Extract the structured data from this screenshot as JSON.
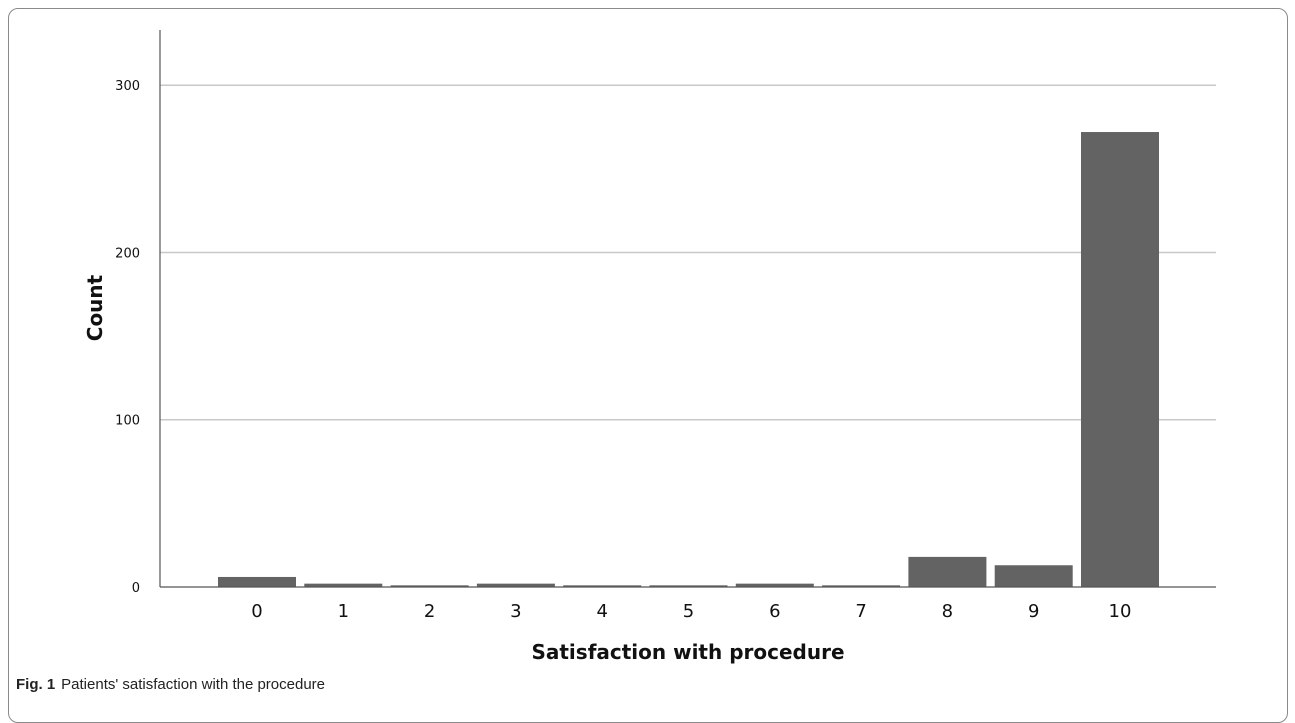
{
  "caption": {
    "label": "Fig. 1",
    "text": "Patients' satisfaction with the procedure"
  },
  "chart_data": {
    "type": "bar",
    "xlabel": "Satisfaction with procedure",
    "ylabel": "Count",
    "categories": [
      "0",
      "1",
      "2",
      "3",
      "4",
      "5",
      "6",
      "7",
      "8",
      "9",
      "10"
    ],
    "values": [
      6,
      2,
      1,
      2,
      1,
      1,
      2,
      1,
      18,
      13,
      272
    ],
    "yticks": [
      0,
      100,
      200,
      300
    ],
    "ylim": [
      0,
      333
    ],
    "grid": true,
    "bar_color": "#636363",
    "grid_color": "#c8c8c8"
  }
}
